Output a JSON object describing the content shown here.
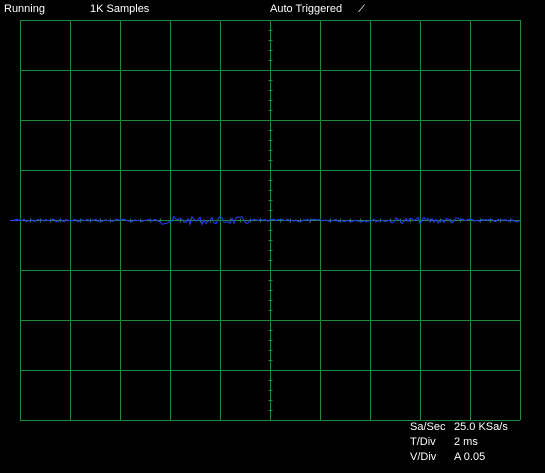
{
  "status": {
    "run_state": "Running",
    "samples": "1K Samples",
    "trigger_mode": "Auto Triggered",
    "trigger_slope": "⁄"
  },
  "readouts": {
    "sample_rate": {
      "label": "Sa/Sec",
      "value": "25.0 KSa/s"
    },
    "time_div": {
      "label": "T/Div",
      "value": "2 ms"
    },
    "volt_div": {
      "label": "V/Div",
      "value": "A 0.05"
    }
  },
  "colors": {
    "background": "#000000",
    "grid": "#1e8a3a",
    "trace": "#2a3cff",
    "text": "#ffffff"
  },
  "grid": {
    "divisions_x": 10,
    "divisions_y": 8,
    "minor_ticks_per_division": 5
  },
  "trace": {
    "channel": "A",
    "baseline_divisions": 0,
    "noise_amplitude_divisions": 0.08
  }
}
